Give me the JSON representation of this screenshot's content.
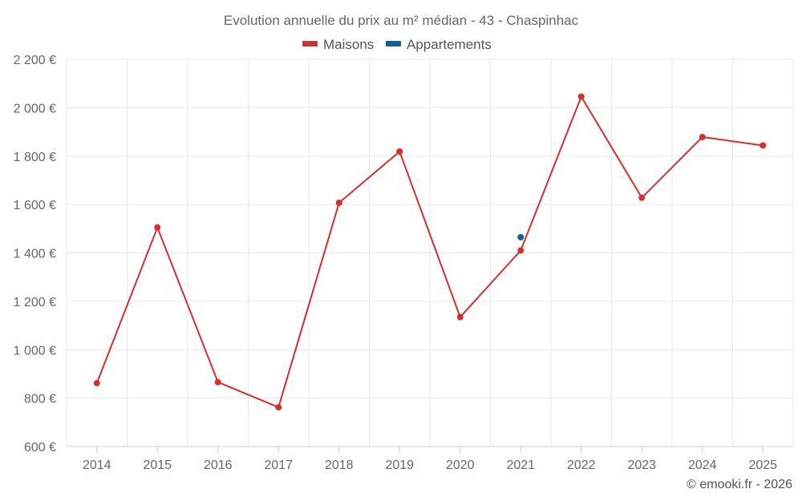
{
  "chart_data": {
    "type": "line",
    "title": "Evolution annuelle du prix au m² médian - 43 - Chaspinhac",
    "categories": [
      "2014",
      "2015",
      "2016",
      "2017",
      "2018",
      "2019",
      "2020",
      "2021",
      "2022",
      "2023",
      "2024",
      "2025"
    ],
    "series": [
      {
        "name": "Maisons",
        "color": "#d32f2f",
        "values": [
          862,
          1505,
          866,
          762,
          1607,
          1819,
          1135,
          1410,
          2046,
          1628,
          1879,
          1844
        ]
      },
      {
        "name": "Appartements",
        "color": "#0f5f94",
        "values": [
          null,
          null,
          null,
          null,
          null,
          null,
          null,
          1465,
          null,
          null,
          null,
          null
        ]
      }
    ],
    "ylim": [
      600,
      2200
    ],
    "yticks": [
      600,
      800,
      1000,
      1200,
      1400,
      1600,
      1800,
      2000,
      2200
    ],
    "ytick_labels": [
      "600 €",
      "800 €",
      "1 000 €",
      "1 200 €",
      "1 400 €",
      "1 600 €",
      "1 800 €",
      "2 000 €",
      "2 200 €"
    ],
    "grid": true,
    "legend_position": "top-center"
  },
  "credit": "© emooki.fr - 2026"
}
